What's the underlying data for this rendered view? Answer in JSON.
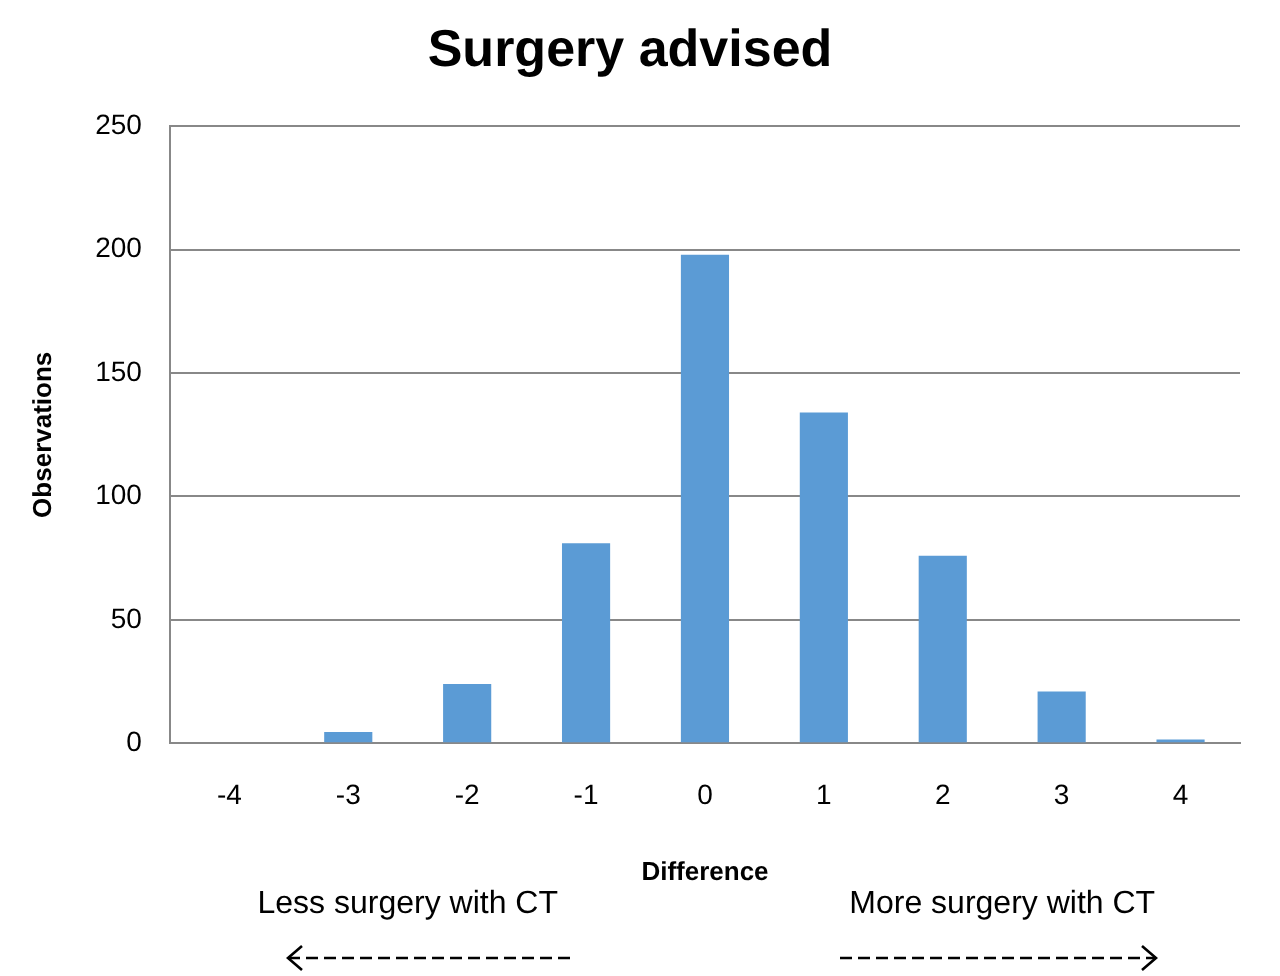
{
  "chart_data": {
    "type": "bar",
    "title": "Surgery advised",
    "xlabel": "Difference",
    "ylabel": "Observations",
    "categories": [
      "-4",
      "-3",
      "-2",
      "-1",
      "0",
      "1",
      "2",
      "3",
      "4"
    ],
    "values": [
      0,
      4.5,
      24,
      81,
      198,
      134,
      76,
      21,
      1.5
    ],
    "color": "#5b9bd5",
    "ylim": [
      0,
      250
    ],
    "yticks": [
      0,
      50,
      100,
      150,
      200,
      250
    ],
    "grid": "y",
    "legend": false,
    "annotations": [
      "Less surgery with CT",
      "More surgery with CT"
    ]
  }
}
